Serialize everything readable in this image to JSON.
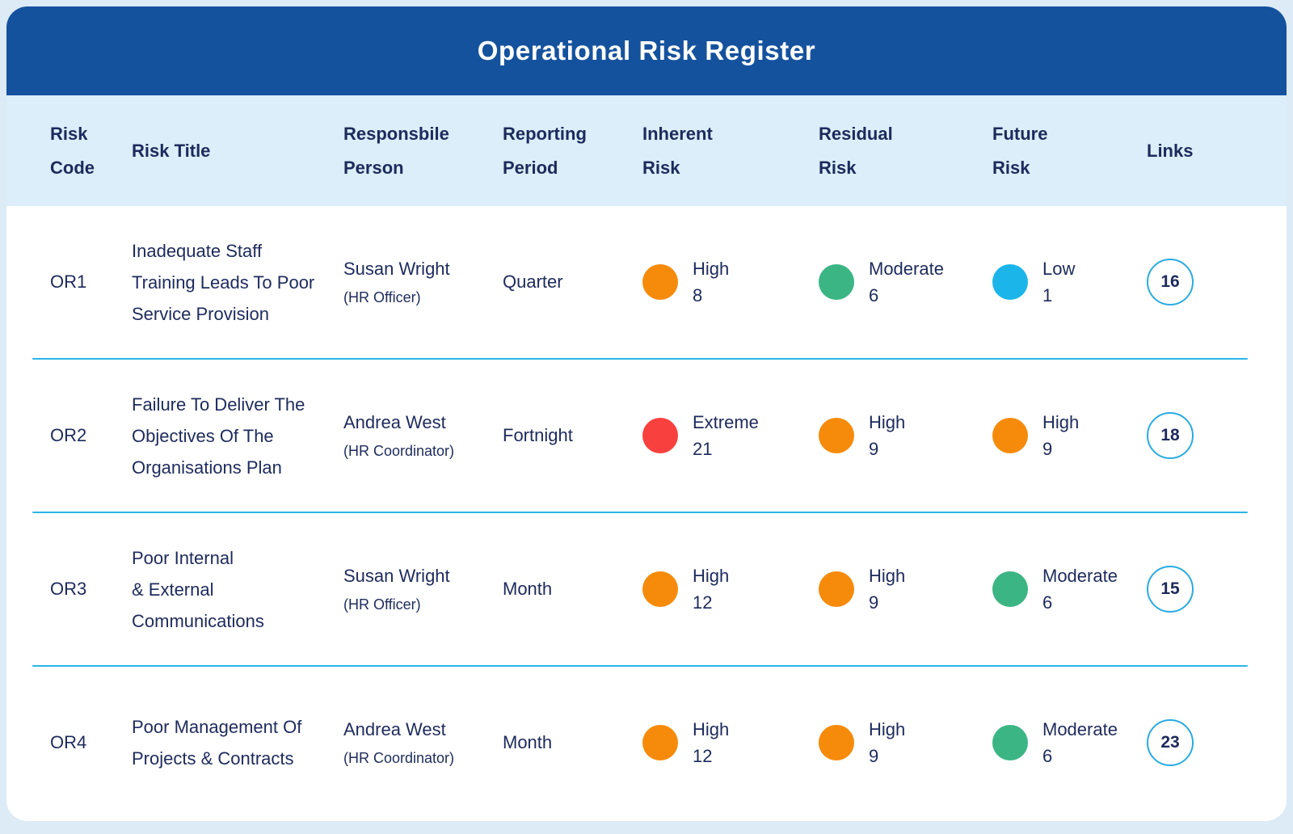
{
  "title": "Operational Risk Register",
  "colors": {
    "header_bg": "#15529E",
    "subheader_bg": "#DBEEF9",
    "text_navy": "#1D2A5C",
    "divider": "#29B6E8",
    "links_ring": "#29ABE2",
    "levels": {
      "Extreme": "#F8413E",
      "High": "#F68B0B",
      "Moderate": "#3BB584",
      "Low": "#1CB5EA"
    }
  },
  "columns": {
    "risk_code": "Risk\nCode",
    "risk_title": "Risk Title",
    "responsible_person": "Responsbile\nPerson",
    "reporting_period": "Reporting\nPeriod",
    "inherent_risk": "Inherent\nRisk",
    "residual_risk": "Residual\nRisk",
    "future_risk": "Future\nRisk",
    "links": "Links"
  },
  "rows": [
    {
      "code": "OR1",
      "title": "Inadequate Staff\nTraining Leads To Poor\nService Provision",
      "person_name": "Susan Wright",
      "person_role": "(HR Officer)",
      "period": "Quarter",
      "inherent": {
        "level": "High",
        "score": "8"
      },
      "residual": {
        "level": "Moderate",
        "score": "6"
      },
      "future": {
        "level": "Low",
        "score": "1"
      },
      "links": "16"
    },
    {
      "code": "OR2",
      "title": "Failure To Deliver The\nObjectives Of The\nOrganisations Plan",
      "person_name": "Andrea West",
      "person_role": "(HR Coordinator)",
      "period": "Fortnight",
      "inherent": {
        "level": "Extreme",
        "score": "21"
      },
      "residual": {
        "level": "High",
        "score": "9"
      },
      "future": {
        "level": "High",
        "score": "9"
      },
      "links": "18"
    },
    {
      "code": "OR3",
      "title": "Poor Internal\n& External\nCommunications",
      "person_name": "Susan Wright",
      "person_role": "(HR Officer)",
      "period": "Month",
      "inherent": {
        "level": "High",
        "score": "12"
      },
      "residual": {
        "level": "High",
        "score": "9"
      },
      "future": {
        "level": "Moderate",
        "score": "6"
      },
      "links": "15"
    },
    {
      "code": "OR4",
      "title": "Poor Management Of\nProjects & Contracts",
      "person_name": "Andrea West",
      "person_role": "(HR Coordinator)",
      "period": "Month",
      "inherent": {
        "level": "High",
        "score": "12"
      },
      "residual": {
        "level": "High",
        "score": "9"
      },
      "future": {
        "level": "Moderate",
        "score": "6"
      },
      "links": "23"
    }
  ]
}
